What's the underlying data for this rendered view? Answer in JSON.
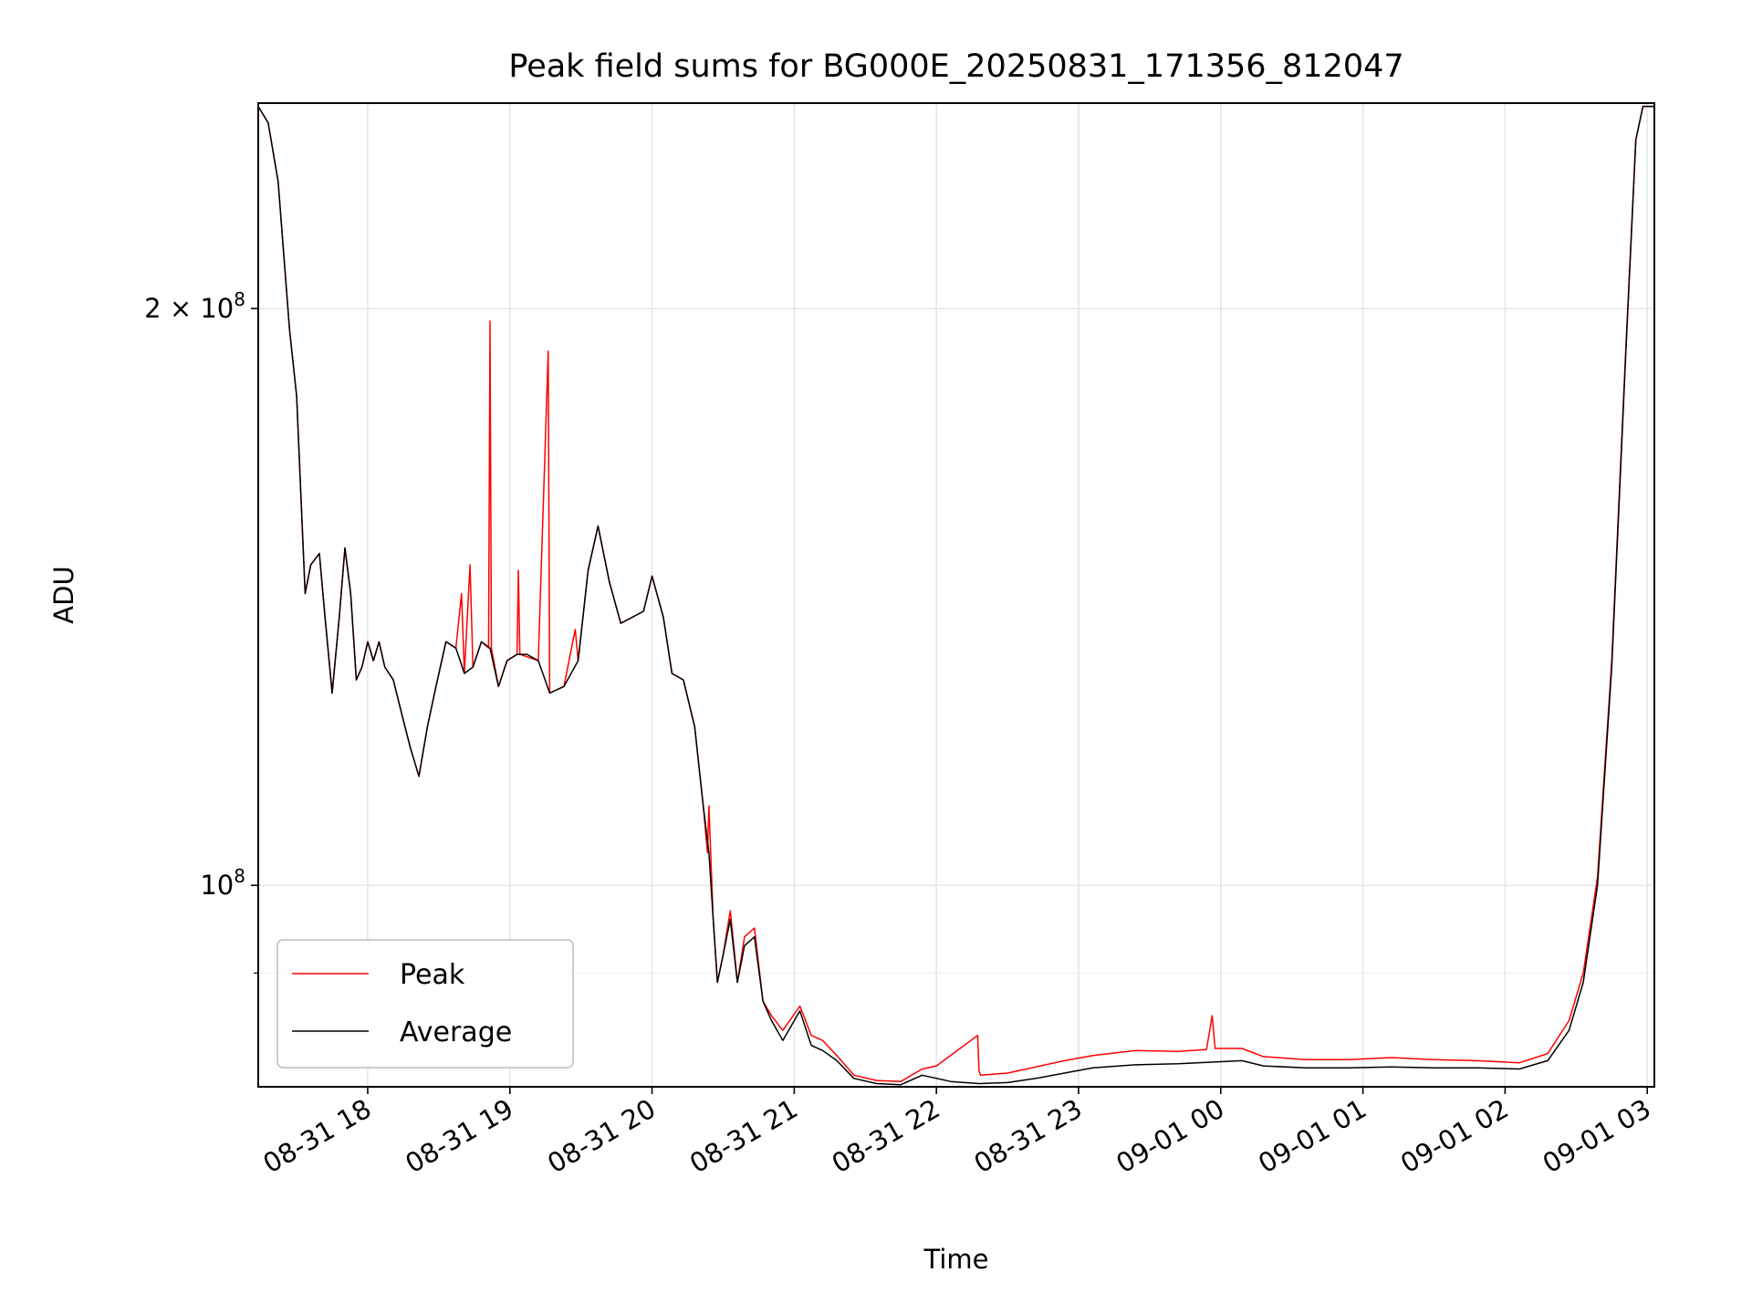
{
  "chart_data": {
    "type": "line",
    "title": "Peak field sums for BG000E_20250831_171356_812047",
    "xlabel": "Time",
    "ylabel": "ADU",
    "yscale": "log",
    "ylim": [
      78500000,
      256000000
    ],
    "xlim_hours": [
      17.23,
      27.05
    ],
    "grid": true,
    "legend_position": "lower-left",
    "x_ticks": [
      {
        "hour": 18,
        "label": "08-31 18"
      },
      {
        "hour": 19,
        "label": "08-31 19"
      },
      {
        "hour": 20,
        "label": "08-31 20"
      },
      {
        "hour": 21,
        "label": "08-31 21"
      },
      {
        "hour": 22,
        "label": "08-31 22"
      },
      {
        "hour": 23,
        "label": "08-31 23"
      },
      {
        "hour": 24,
        "label": "09-01 00"
      },
      {
        "hour": 25,
        "label": "09-01 01"
      },
      {
        "hour": 26,
        "label": "09-01 02"
      },
      {
        "hour": 27,
        "label": "09-01 03"
      }
    ],
    "y_ticks_major": [
      {
        "value": 100000000,
        "base": "10",
        "exp": "8",
        "mantissa": ""
      },
      {
        "value": 200000000,
        "base": "10",
        "exp": "8",
        "mantissa": "2 × "
      }
    ],
    "y_ticks_minor": [
      90000000
    ],
    "series": [
      {
        "name": "Average",
        "color": "#000000",
        "points": [
          [
            17.23,
            255000000
          ],
          [
            17.3,
            250000000
          ],
          [
            17.37,
            233000000
          ],
          [
            17.45,
            195000000
          ],
          [
            17.5,
            180000000
          ],
          [
            17.53,
            160000000
          ],
          [
            17.56,
            142000000
          ],
          [
            17.6,
            147000000
          ],
          [
            17.66,
            149000000
          ],
          [
            17.7,
            138000000
          ],
          [
            17.75,
            126000000
          ],
          [
            17.8,
            138000000
          ],
          [
            17.84,
            150000000
          ],
          [
            17.88,
            142000000
          ],
          [
            17.92,
            128000000
          ],
          [
            17.96,
            130000000
          ],
          [
            18.0,
            134000000
          ],
          [
            18.04,
            131000000
          ],
          [
            18.08,
            134000000
          ],
          [
            18.12,
            130000000
          ],
          [
            18.18,
            128000000
          ],
          [
            18.25,
            122000000
          ],
          [
            18.3,
            118000000
          ],
          [
            18.36,
            114000000
          ],
          [
            18.42,
            121000000
          ],
          [
            18.48,
            127000000
          ],
          [
            18.55,
            134000000
          ],
          [
            18.62,
            133000000
          ],
          [
            18.68,
            129000000
          ],
          [
            18.74,
            130000000
          ],
          [
            18.8,
            134000000
          ],
          [
            18.86,
            133000000
          ],
          [
            18.92,
            127000000
          ],
          [
            18.98,
            131000000
          ],
          [
            19.05,
            132000000
          ],
          [
            19.12,
            132000000
          ],
          [
            19.2,
            131000000
          ],
          [
            19.28,
            126000000
          ],
          [
            19.38,
            127000000
          ],
          [
            19.48,
            131000000
          ],
          [
            19.55,
            146000000
          ],
          [
            19.62,
            154000000
          ],
          [
            19.7,
            144000000
          ],
          [
            19.78,
            137000000
          ],
          [
            19.86,
            138000000
          ],
          [
            19.94,
            139000000
          ],
          [
            20.0,
            145000000
          ],
          [
            20.08,
            138000000
          ],
          [
            20.14,
            129000000
          ],
          [
            20.22,
            128000000
          ],
          [
            20.3,
            121000000
          ],
          [
            20.36,
            110000000
          ],
          [
            20.4,
            104000000
          ],
          [
            20.43,
            96000000
          ],
          [
            20.46,
            89000000
          ],
          [
            20.5,
            92000000
          ],
          [
            20.55,
            96000000
          ],
          [
            20.6,
            89000000
          ],
          [
            20.65,
            93000000
          ],
          [
            20.72,
            94000000
          ],
          [
            20.78,
            87000000
          ],
          [
            20.84,
            85000000
          ],
          [
            20.92,
            83000000
          ],
          [
            21.04,
            86000000
          ],
          [
            21.12,
            82500000
          ],
          [
            21.2,
            82000000
          ],
          [
            21.3,
            81000000
          ],
          [
            21.42,
            79300000
          ],
          [
            21.58,
            78800000
          ],
          [
            21.75,
            78700000
          ],
          [
            21.9,
            79600000
          ],
          [
            22.1,
            79000000
          ],
          [
            22.3,
            78800000
          ],
          [
            22.5,
            78900000
          ],
          [
            22.7,
            79300000
          ],
          [
            22.9,
            79800000
          ],
          [
            23.1,
            80300000
          ],
          [
            23.4,
            80600000
          ],
          [
            23.7,
            80700000
          ],
          [
            24.0,
            80900000
          ],
          [
            24.15,
            81000000
          ],
          [
            24.3,
            80500000
          ],
          [
            24.6,
            80300000
          ],
          [
            24.9,
            80300000
          ],
          [
            25.2,
            80400000
          ],
          [
            25.5,
            80300000
          ],
          [
            25.8,
            80300000
          ],
          [
            26.1,
            80200000
          ],
          [
            26.3,
            81000000
          ],
          [
            26.45,
            84000000
          ],
          [
            26.55,
            89000000
          ],
          [
            26.65,
            100000000
          ],
          [
            26.75,
            130000000
          ],
          [
            26.85,
            190000000
          ],
          [
            26.92,
            245000000
          ],
          [
            26.97,
            255000000
          ],
          [
            27.05,
            255000000
          ]
        ]
      },
      {
        "name": "Peak",
        "color": "#ff0000",
        "points": [
          [
            17.23,
            255000000
          ],
          [
            17.3,
            250000000
          ],
          [
            17.37,
            233000000
          ],
          [
            17.45,
            195000000
          ],
          [
            17.5,
            180000000
          ],
          [
            17.53,
            160000000
          ],
          [
            17.56,
            142000000
          ],
          [
            17.6,
            147000000
          ],
          [
            17.66,
            149000000
          ],
          [
            17.7,
            138000000
          ],
          [
            17.75,
            126000000
          ],
          [
            17.8,
            138000000
          ],
          [
            17.84,
            150000000
          ],
          [
            17.88,
            142000000
          ],
          [
            17.92,
            128000000
          ],
          [
            17.96,
            130000000
          ],
          [
            18.0,
            134000000
          ],
          [
            18.04,
            131000000
          ],
          [
            18.08,
            134000000
          ],
          [
            18.12,
            130000000
          ],
          [
            18.18,
            128000000
          ],
          [
            18.25,
            122000000
          ],
          [
            18.3,
            118000000
          ],
          [
            18.36,
            114000000
          ],
          [
            18.42,
            121000000
          ],
          [
            18.48,
            127000000
          ],
          [
            18.55,
            134000000
          ],
          [
            18.62,
            133000000
          ],
          [
            18.66,
            142000000
          ],
          [
            18.68,
            129000000
          ],
          [
            18.72,
            147000000
          ],
          [
            18.74,
            130000000
          ],
          [
            18.8,
            134000000
          ],
          [
            18.85,
            133000000
          ],
          [
            18.86,
            197000000
          ],
          [
            18.87,
            133000000
          ],
          [
            18.92,
            127000000
          ],
          [
            18.98,
            131000000
          ],
          [
            19.05,
            132000000
          ],
          [
            19.06,
            146000000
          ],
          [
            19.07,
            132000000
          ],
          [
            19.2,
            131000000
          ],
          [
            19.27,
            190000000
          ],
          [
            19.28,
            126000000
          ],
          [
            19.38,
            127000000
          ],
          [
            19.46,
            136000000
          ],
          [
            19.48,
            131000000
          ],
          [
            19.55,
            146000000
          ],
          [
            19.62,
            154000000
          ],
          [
            19.7,
            144000000
          ],
          [
            19.78,
            137000000
          ],
          [
            19.86,
            138000000
          ],
          [
            19.94,
            139000000
          ],
          [
            20.0,
            145000000
          ],
          [
            20.08,
            138000000
          ],
          [
            20.14,
            129000000
          ],
          [
            20.22,
            128000000
          ],
          [
            20.3,
            121000000
          ],
          [
            20.36,
            110000000
          ],
          [
            20.39,
            104000000
          ],
          [
            20.4,
            110000000
          ],
          [
            20.43,
            96000000
          ],
          [
            20.46,
            89000000
          ],
          [
            20.5,
            92000000
          ],
          [
            20.55,
            97000000
          ],
          [
            20.6,
            89000000
          ],
          [
            20.65,
            94000000
          ],
          [
            20.72,
            95000000
          ],
          [
            20.78,
            87000000
          ],
          [
            20.84,
            85500000
          ],
          [
            20.92,
            84000000
          ],
          [
            21.04,
            86500000
          ],
          [
            21.12,
            83500000
          ],
          [
            21.2,
            83000000
          ],
          [
            21.3,
            81500000
          ],
          [
            21.42,
            79600000
          ],
          [
            21.58,
            79100000
          ],
          [
            21.75,
            79000000
          ],
          [
            21.9,
            80200000
          ],
          [
            22.0,
            80500000
          ],
          [
            22.3,
            80000000
          ],
          [
            22.29,
            83500000
          ],
          [
            22.31,
            79600000
          ],
          [
            22.5,
            79800000
          ],
          [
            22.7,
            80400000
          ],
          [
            22.9,
            81000000
          ],
          [
            23.1,
            81500000
          ],
          [
            23.4,
            82000000
          ],
          [
            23.7,
            81900000
          ],
          [
            23.9,
            82100000
          ],
          [
            23.94,
            85500000
          ],
          [
            23.96,
            82200000
          ],
          [
            24.15,
            82200000
          ],
          [
            24.3,
            81400000
          ],
          [
            24.6,
            81100000
          ],
          [
            24.9,
            81100000
          ],
          [
            25.2,
            81300000
          ],
          [
            25.5,
            81100000
          ],
          [
            25.8,
            81000000
          ],
          [
            26.1,
            80800000
          ],
          [
            26.3,
            81700000
          ],
          [
            26.45,
            85000000
          ],
          [
            26.55,
            90000000
          ],
          [
            26.65,
            101000000
          ],
          [
            26.75,
            131000000
          ],
          [
            26.85,
            191000000
          ],
          [
            26.92,
            245000000
          ],
          [
            26.97,
            255000000
          ],
          [
            27.05,
            255000000
          ]
        ]
      }
    ]
  }
}
